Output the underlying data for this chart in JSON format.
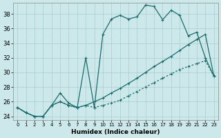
{
  "xlabel": "Humidex (Indice chaleur)",
  "background_color": "#cce8ea",
  "grid_color": "#aacdd0",
  "line_color": "#1a6b6b",
  "xlim": [
    -0.5,
    23.5
  ],
  "ylim": [
    23.5,
    39.5
  ],
  "xticks": [
    0,
    1,
    2,
    3,
    4,
    5,
    6,
    7,
    8,
    9,
    10,
    11,
    12,
    13,
    14,
    15,
    16,
    17,
    18,
    19,
    20,
    21,
    22,
    23
  ],
  "yticks": [
    24,
    26,
    28,
    30,
    32,
    34,
    36,
    38
  ],
  "line1_x": [
    0,
    1,
    2,
    3,
    4,
    5,
    6,
    7,
    8,
    9,
    10,
    11,
    12,
    13,
    14,
    15,
    16,
    17,
    18,
    19,
    20,
    21,
    22,
    23
  ],
  "line1_y": [
    25.2,
    24.5,
    24.0,
    24.0,
    25.5,
    27.2,
    25.8,
    25.2,
    32.0,
    25.2,
    35.2,
    37.3,
    37.8,
    37.3,
    37.6,
    39.2,
    39.0,
    37.2,
    38.5,
    37.8,
    35.0,
    35.5,
    32.0,
    29.5
  ],
  "line2_x": [
    0,
    1,
    2,
    3,
    4,
    5,
    6,
    7,
    8,
    9,
    10,
    11,
    12,
    13,
    14,
    15,
    16,
    17,
    18,
    19,
    20,
    21,
    22,
    23
  ],
  "line2_y": [
    25.2,
    24.5,
    24.0,
    24.0,
    25.5,
    26.0,
    25.5,
    25.2,
    25.5,
    26.0,
    26.5,
    27.2,
    27.8,
    28.5,
    29.2,
    30.0,
    30.8,
    31.5,
    32.2,
    33.0,
    33.8,
    34.5,
    35.2,
    29.5
  ],
  "line3_x": [
    0,
    1,
    2,
    3,
    4,
    5,
    6,
    7,
    8,
    9,
    10,
    11,
    12,
    13,
    14,
    15,
    16,
    17,
    18,
    19,
    20,
    21,
    22,
    23
  ],
  "line3_y": [
    25.2,
    24.5,
    24.0,
    24.0,
    25.5,
    26.0,
    25.5,
    25.2,
    25.5,
    25.2,
    25.5,
    25.8,
    26.2,
    26.8,
    27.4,
    28.0,
    28.6,
    29.2,
    29.8,
    30.4,
    30.8,
    31.2,
    31.6,
    29.5
  ]
}
